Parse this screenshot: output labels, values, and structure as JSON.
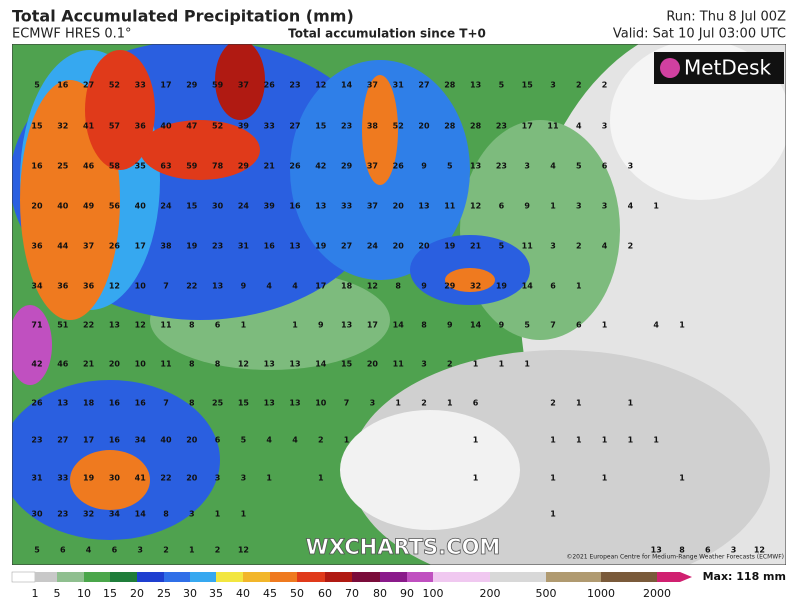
{
  "header": {
    "title": "Total Accumulated Precipitation (mm)",
    "model": "ECMWF HRES 0.1°",
    "subtitle": "Total accumulation since T+0",
    "run": "Run: Thu 8 Jul 00Z",
    "valid": "Valid: Sat 10 Jul 03:00 UTC"
  },
  "logo": "MetDesk",
  "watermark": "WXCHARTS.COM",
  "copyright": "©2021 European Centre for Medium-Range Weather Forecasts (ECMWF)",
  "grid": {
    "rows": [
      [
        5,
        16,
        27,
        52,
        33,
        17,
        29,
        59,
        37,
        26,
        23,
        12,
        14,
        37,
        31,
        27,
        28,
        13,
        5,
        15,
        3,
        2,
        2
      ],
      [
        15,
        32,
        41,
        57,
        36,
        40,
        47,
        52,
        39,
        33,
        27,
        15,
        23,
        38,
        52,
        20,
        28,
        28,
        23,
        17,
        11,
        4,
        3
      ],
      [
        16,
        25,
        46,
        58,
        35,
        63,
        59,
        78,
        29,
        21,
        26,
        42,
        29,
        37,
        26,
        9,
        5,
        13,
        23,
        3,
        4,
        5,
        6,
        3
      ],
      [
        20,
        40,
        49,
        56,
        40,
        24,
        15,
        30,
        24,
        39,
        16,
        13,
        33,
        37,
        20,
        13,
        11,
        12,
        6,
        9,
        1,
        3,
        3,
        4,
        1
      ],
      [
        36,
        44,
        37,
        26,
        17,
        38,
        19,
        23,
        31,
        16,
        13,
        19,
        27,
        24,
        20,
        20,
        19,
        21,
        5,
        11,
        3,
        2,
        4,
        2
      ],
      [
        34,
        36,
        36,
        12,
        10,
        7,
        22,
        13,
        9,
        4,
        4,
        17,
        18,
        12,
        8,
        9,
        29,
        32,
        19,
        14,
        6,
        1
      ],
      [
        71,
        51,
        22,
        13,
        12,
        11,
        8,
        6,
        1,
        null,
        1,
        9,
        13,
        17,
        14,
        8,
        9,
        14,
        9,
        5,
        7,
        6,
        1,
        null,
        4,
        1
      ],
      [
        42,
        46,
        21,
        20,
        10,
        11,
        8,
        8,
        12,
        13,
        13,
        14,
        15,
        20,
        11,
        3,
        2,
        1,
        1,
        1
      ],
      [
        26,
        13,
        18,
        16,
        16,
        7,
        8,
        25,
        15,
        13,
        13,
        10,
        7,
        3,
        1,
        2,
        1,
        6,
        null,
        null,
        2,
        1,
        null,
        1
      ],
      [
        23,
        27,
        17,
        16,
        34,
        40,
        20,
        6,
        5,
        4,
        4,
        2,
        1,
        null,
        null,
        null,
        null,
        1,
        null,
        null,
        1,
        1,
        1,
        1,
        1
      ],
      [
        31,
        33,
        19,
        30,
        41,
        22,
        20,
        3,
        3,
        1,
        null,
        1,
        null,
        null,
        null,
        null,
        null,
        1,
        null,
        null,
        1,
        null,
        1,
        null,
        null,
        1
      ],
      [
        30,
        23,
        32,
        34,
        14,
        8,
        3,
        1,
        1,
        null,
        null,
        null,
        null,
        null,
        null,
        null,
        null,
        null,
        null,
        null,
        1
      ],
      [
        5,
        6,
        4,
        6,
        3,
        2,
        1,
        2,
        12,
        null,
        null,
        null,
        null,
        null,
        null,
        null,
        null,
        null,
        null,
        null,
        null,
        null,
        null,
        null,
        13,
        8,
        6,
        3,
        12
      ]
    ]
  },
  "colorbar": {
    "labels": [
      1,
      5,
      10,
      15,
      20,
      25,
      30,
      35,
      40,
      45,
      50,
      60,
      70,
      80,
      90,
      100,
      200,
      500,
      1000,
      2000
    ],
    "colors": [
      "#c8c8c8",
      "#8fbf8f",
      "#4aa64a",
      "#1f7d3a",
      "#1e3fd0",
      "#2f6fe8",
      "#36a8f0",
      "#f2e640",
      "#f2b62a",
      "#ef7a1f",
      "#e03a1a",
      "#b01a12",
      "#7a0c3a",
      "#8a1a8a",
      "#c050c0",
      "#f0c8f0",
      "#d8d8d8",
      "#b09a70",
      "#7a5a3a",
      "#d02070"
    ],
    "max": "Max: 118 mm"
  }
}
